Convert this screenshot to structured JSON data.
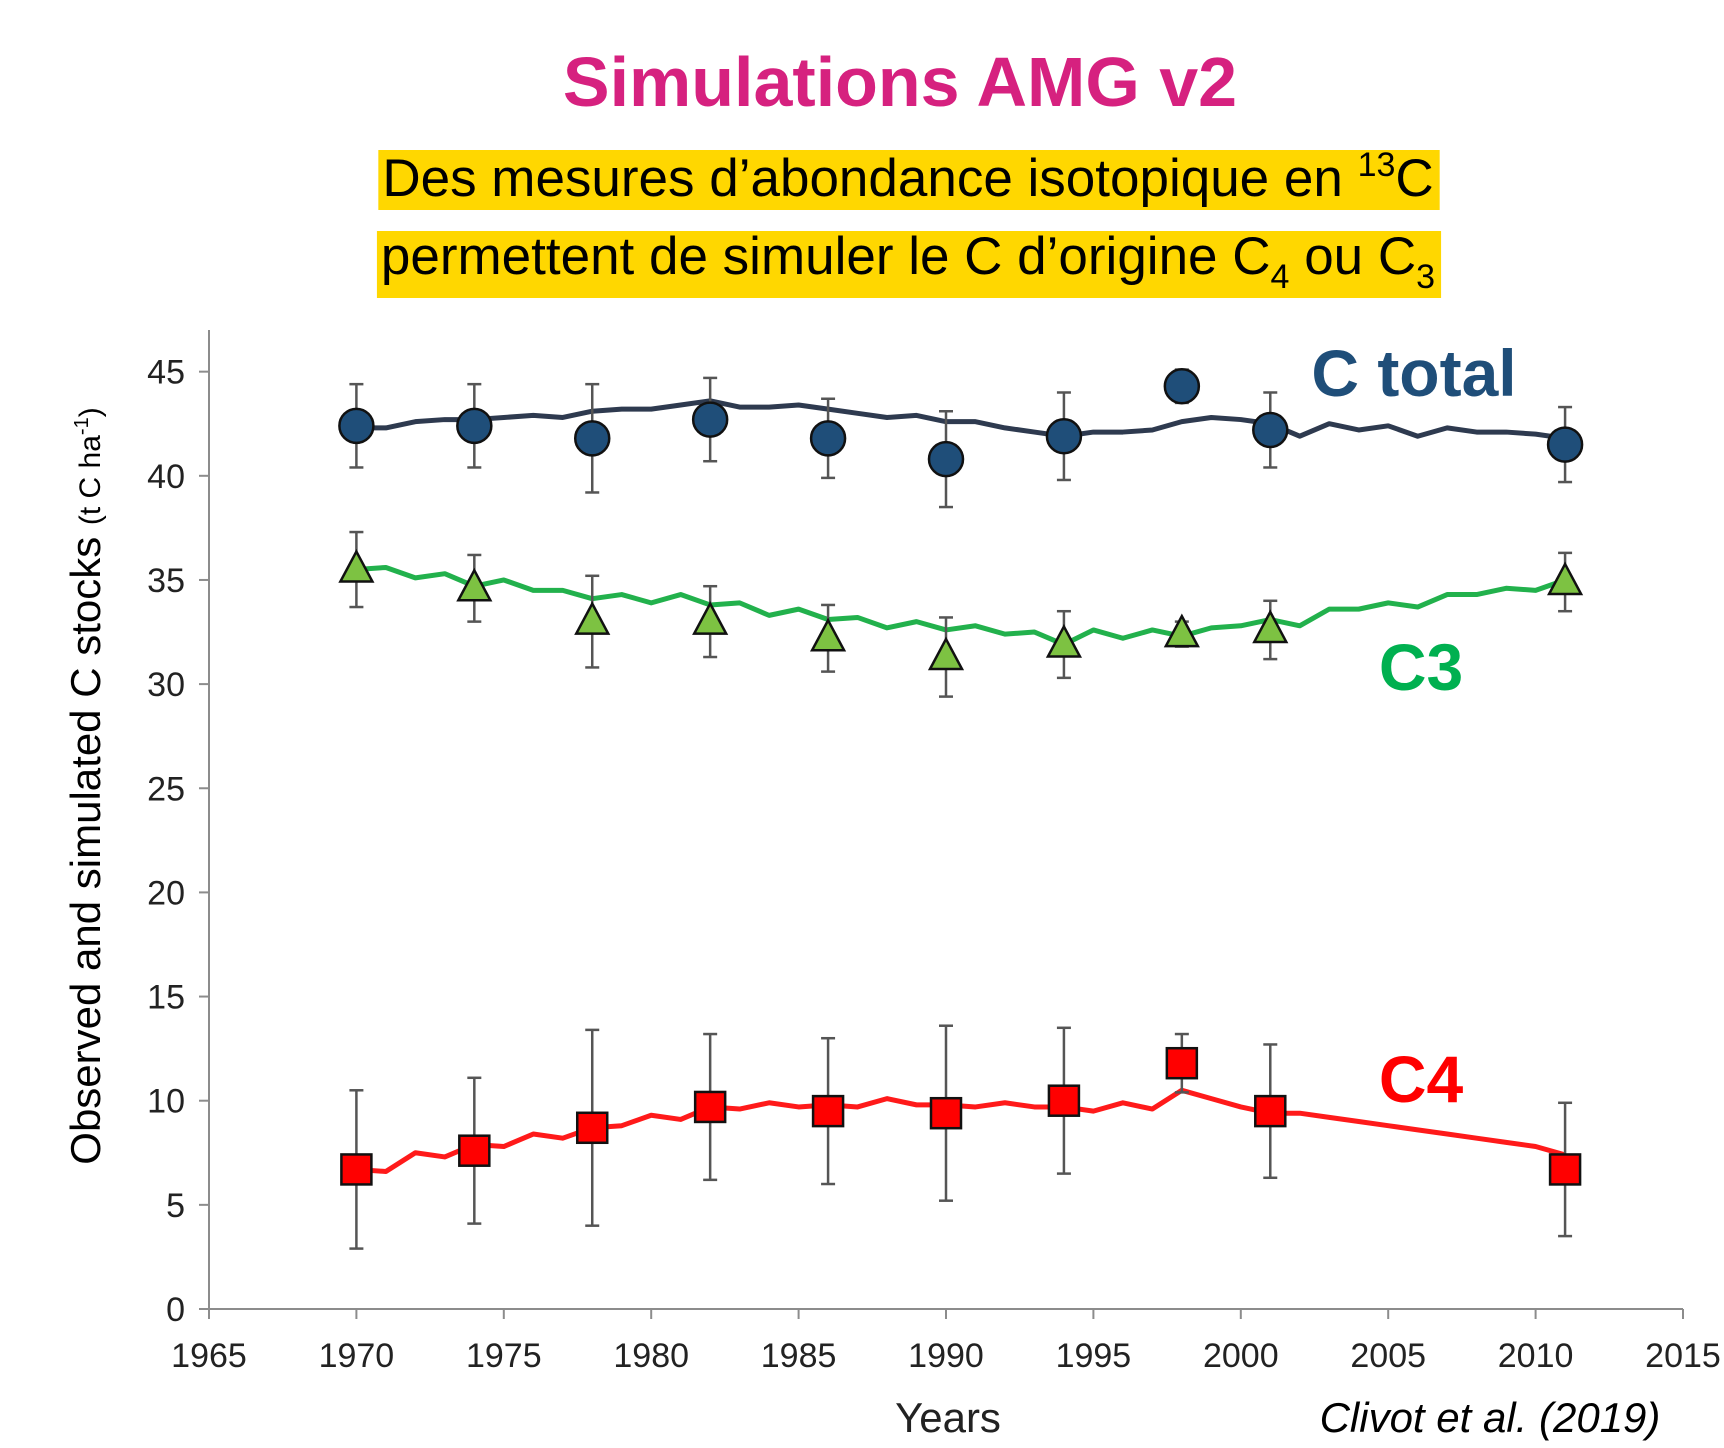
{
  "chart_data": {
    "type": "line",
    "title": "Simulations AMG v2",
    "subtitle": {
      "line1": [
        "Des mesures d’abondance isotopique en ",
        "13",
        "C"
      ],
      "line2": [
        "permettent de simuler le C d’origine C",
        "4",
        " ou C",
        "3"
      ]
    },
    "x_label": "Years",
    "y_label": [
      "Observed and simulated C stocks ",
      "(t C ha",
      "-1",
      ")"
    ],
    "source": "Clivot et al. (2019)",
    "xlim": [
      1965,
      2015
    ],
    "xticks": [
      1965,
      1970,
      1975,
      1980,
      1985,
      1990,
      1995,
      2000,
      2005,
      2010,
      2015
    ],
    "ylim": [
      0,
      47
    ],
    "yticks": [
      0,
      5,
      10,
      15,
      20,
      25,
      30,
      35,
      40,
      45
    ],
    "grid": false,
    "x": [
      1970,
      1974,
      1978,
      1982,
      1986,
      1990,
      1994,
      1998,
      2001,
      2011
    ],
    "sim_x": [
      1970,
      1971,
      1972,
      1973,
      1974,
      1975,
      1976,
      1977,
      1978,
      1979,
      1980,
      1981,
      1982,
      1983,
      1984,
      1985,
      1986,
      1987,
      1988,
      1989,
      1990,
      1991,
      1992,
      1993,
      1994,
      1995,
      1996,
      1997,
      1998,
      1999,
      2000,
      2001,
      2002,
      2003,
      2004,
      2005,
      2006,
      2007,
      2008,
      2009,
      2010,
      2011
    ],
    "series": [
      {
        "name": "C total",
        "color": "#1f4e79",
        "line_color": "#2e3a4f",
        "label_color": "#1f4e79",
        "marker": "circle",
        "values": [
          42.4,
          42.4,
          41.8,
          42.7,
          41.8,
          40.8,
          41.9,
          44.3,
          42.2,
          41.5
        ],
        "errors": [
          2.0,
          2.0,
          2.6,
          2.0,
          1.9,
          2.3,
          2.1,
          0.8,
          1.8,
          1.8
        ],
        "simulated": [
          42.3,
          42.3,
          42.6,
          42.7,
          42.7,
          42.8,
          42.9,
          42.8,
          43.1,
          43.2,
          43.2,
          43.4,
          43.6,
          43.3,
          43.3,
          43.4,
          43.2,
          43.0,
          42.8,
          42.9,
          42.6,
          42.6,
          42.3,
          42.1,
          41.9,
          42.1,
          42.1,
          42.2,
          42.6,
          42.8,
          42.7,
          42.5,
          41.9,
          42.5,
          42.2,
          42.4,
          41.9,
          42.3,
          42.1,
          42.1,
          42.0,
          41.8
        ]
      },
      {
        "name": "C3",
        "color": "#7dc242",
        "line_color": "#22b14c",
        "label_color": "#00b050",
        "marker": "triangle",
        "values": [
          35.5,
          34.6,
          33.0,
          33.0,
          32.2,
          31.3,
          31.9,
          32.4,
          32.6,
          34.9
        ],
        "errors": [
          1.8,
          1.6,
          2.2,
          1.7,
          1.6,
          1.9,
          1.6,
          0.6,
          1.4,
          1.4
        ],
        "simulated": [
          35.5,
          35.6,
          35.1,
          35.3,
          34.7,
          35.0,
          34.5,
          34.5,
          34.1,
          34.3,
          33.9,
          34.3,
          33.8,
          33.9,
          33.3,
          33.6,
          33.1,
          33.2,
          32.7,
          33.0,
          32.6,
          32.8,
          32.4,
          32.5,
          31.9,
          32.6,
          32.2,
          32.6,
          32.3,
          32.7,
          32.8,
          33.1,
          32.8,
          33.6,
          33.6,
          33.9,
          33.7,
          34.3,
          34.3,
          34.6,
          34.5,
          35.0
        ]
      },
      {
        "name": "C4",
        "color": "#ff0000",
        "line_color": "#ff1a1a",
        "label_color": "#ff0000",
        "marker": "square",
        "values": [
          6.7,
          7.6,
          8.7,
          9.7,
          9.5,
          9.4,
          10.0,
          11.8,
          9.5,
          6.7
        ],
        "errors": [
          3.8,
          3.5,
          4.7,
          3.5,
          3.5,
          4.2,
          3.5,
          1.4,
          3.2,
          3.2
        ],
        "simulated": [
          6.7,
          6.6,
          7.5,
          7.3,
          7.9,
          7.8,
          8.4,
          8.2,
          8.7,
          8.8,
          9.3,
          9.1,
          9.7,
          9.6,
          9.9,
          9.7,
          9.8,
          9.7,
          10.1,
          9.8,
          9.8,
          9.7,
          9.9,
          9.7,
          9.7,
          9.5,
          9.9,
          9.6,
          10.5,
          10.1,
          9.7,
          9.4,
          9.4,
          9.2,
          9.0,
          8.8,
          8.6,
          8.4,
          8.2,
          8.0,
          7.8,
          7.4
        ]
      }
    ]
  }
}
